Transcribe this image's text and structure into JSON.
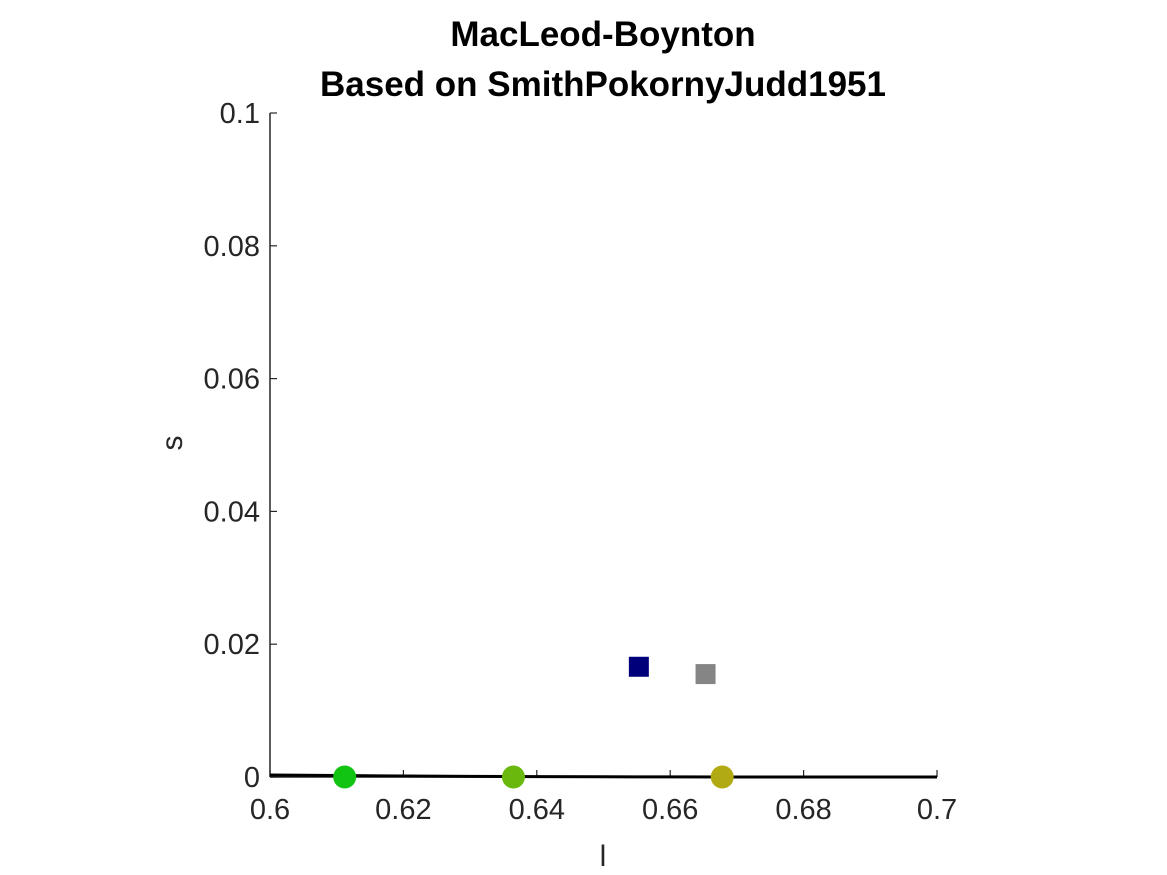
{
  "chart_data": {
    "type": "scatter",
    "title": "MacLeod-Boynton",
    "subtitle": "Based on SmithPokornyJudd1951",
    "xlabel": "l",
    "ylabel": "s",
    "xlim": [
      0.6,
      0.7
    ],
    "ylim": [
      0,
      0.1
    ],
    "x_ticks": [
      0.6,
      0.62,
      0.64,
      0.66,
      0.68,
      0.7
    ],
    "x_tick_labels": [
      "0.6",
      "0.62",
      "0.64",
      "0.66",
      "0.68",
      "0.7"
    ],
    "y_ticks": [
      0,
      0.02,
      0.04,
      0.06,
      0.08,
      0.1
    ],
    "y_tick_labels": [
      "0",
      "0.02",
      "0.04",
      "0.06",
      "0.08",
      "0.1"
    ],
    "grid": false,
    "line": {
      "color": "#000000",
      "x": [
        0.6,
        0.61,
        0.62,
        0.63,
        0.64,
        0.65,
        0.66,
        0.67,
        0.68,
        0.69,
        0.7
      ],
      "y": [
        0.0003,
        0.00022,
        0.00015,
        0.0001,
        6e-05,
        3e-05,
        1.5e-05,
        6e-06,
        2e-06,
        1e-06,
        0.0
      ]
    },
    "points": [
      {
        "x": 0.6112,
        "y": 0.0,
        "marker": "circle",
        "color": "#12c412"
      },
      {
        "x": 0.6365,
        "y": 0.0,
        "marker": "circle",
        "color": "#6ab80e"
      },
      {
        "x": 0.6678,
        "y": 0.0,
        "marker": "circle",
        "color": "#b2aa12"
      },
      {
        "x": 0.6553,
        "y": 0.0166,
        "marker": "square",
        "color": "#00007a"
      },
      {
        "x": 0.6653,
        "y": 0.0155,
        "marker": "square",
        "color": "#858585"
      }
    ]
  }
}
